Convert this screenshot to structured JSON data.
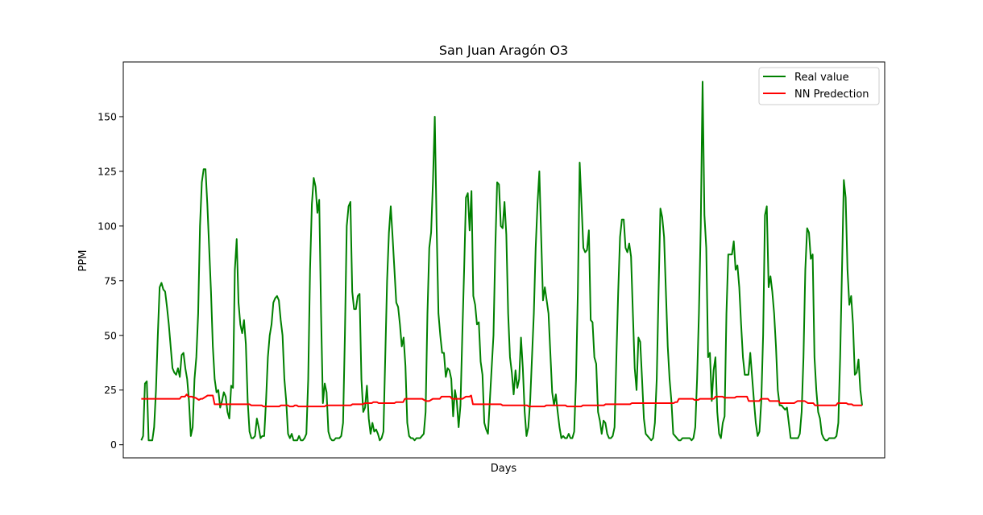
{
  "chart_data": {
    "type": "line",
    "title": "San Juan Aragón O3",
    "xlabel": "Days",
    "ylabel": "PPM",
    "ylim": [
      -6,
      175
    ],
    "xlim": [
      -8,
      330
    ],
    "yticks": [
      0,
      25,
      50,
      75,
      100,
      125,
      150
    ],
    "grid": false,
    "legend_position": "top-right",
    "series": [
      {
        "name": "Real value",
        "color": "#008000",
        "values": [
          2,
          4,
          28,
          29,
          2,
          2,
          2,
          8,
          25,
          50,
          72,
          74,
          71,
          70,
          63,
          55,
          45,
          35,
          33,
          32,
          35,
          31,
          41,
          42,
          35,
          30,
          20,
          4,
          8,
          30,
          40,
          60,
          100,
          120,
          126,
          126,
          110,
          90,
          70,
          45,
          30,
          24,
          25,
          17,
          20,
          24,
          22,
          15,
          12,
          27,
          26,
          80,
          94,
          65,
          55,
          51,
          57,
          46,
          20,
          6,
          3,
          3,
          4,
          12,
          8,
          3,
          4,
          4,
          20,
          40,
          50,
          55,
          65,
          67,
          68,
          66,
          57,
          50,
          30,
          20,
          5,
          3,
          5,
          2,
          2,
          2,
          4,
          2,
          2,
          3,
          5,
          30,
          80,
          110,
          122,
          118,
          106,
          112,
          60,
          19,
          28,
          24,
          6,
          3,
          2,
          2,
          3,
          3,
          3,
          4,
          10,
          50,
          100,
          109,
          111,
          70,
          62,
          62,
          68,
          69,
          30,
          15,
          17,
          27,
          12,
          5,
          10,
          6,
          7,
          5,
          2,
          3,
          6,
          40,
          75,
          97,
          109,
          95,
          80,
          65,
          63,
          55,
          45,
          49,
          36,
          10,
          4,
          3,
          3,
          2,
          3,
          3,
          3,
          4,
          5,
          15,
          60,
          90,
          97,
          120,
          150,
          100,
          60,
          50,
          42,
          42,
          31,
          35,
          34,
          30,
          13,
          25,
          20,
          8,
          18,
          50,
          80,
          113,
          115,
          98,
          116,
          68,
          64,
          55,
          56,
          38,
          32,
          10,
          7,
          5,
          20,
          35,
          50,
          90,
          120,
          119,
          100,
          99,
          111,
          96,
          60,
          40,
          33,
          23,
          34,
          26,
          30,
          49,
          35,
          15,
          4,
          8,
          20,
          40,
          60,
          90,
          110,
          125,
          95,
          66,
          72,
          66,
          60,
          42,
          24,
          18,
          23,
          15,
          8,
          3,
          4,
          3,
          3,
          5,
          3,
          3,
          6,
          30,
          70,
          129,
          110,
          90,
          88,
          89,
          98,
          57,
          56,
          40,
          37,
          15,
          11,
          5,
          11,
          10,
          5,
          3,
          3,
          4,
          8,
          40,
          70,
          95,
          103,
          103,
          90,
          88,
          92,
          86,
          60,
          35,
          25,
          49,
          47,
          30,
          12,
          5,
          4,
          3,
          2,
          3,
          10,
          30,
          70,
          108,
          104,
          95,
          70,
          45,
          30,
          20,
          5,
          4,
          3,
          2,
          2,
          3,
          3,
          3,
          3,
          3,
          2,
          3,
          8,
          30,
          60,
          100,
          166,
          105,
          90,
          40,
          42,
          20,
          34,
          40,
          15,
          5,
          3,
          10,
          13,
          60,
          87,
          87,
          87,
          93,
          80,
          82,
          72,
          55,
          40,
          32,
          32,
          32,
          42,
          31,
          20,
          10,
          4,
          6,
          20,
          50,
          105,
          109,
          72,
          77,
          70,
          60,
          45,
          25,
          18,
          18,
          17,
          16,
          17,
          10,
          3,
          3,
          3,
          3,
          3,
          5,
          15,
          40,
          80,
          99,
          97,
          85,
          87,
          40,
          25,
          15,
          12,
          5,
          3,
          2,
          2,
          3,
          3,
          3,
          3,
          4,
          10,
          40,
          80,
          121,
          113,
          80,
          64,
          68,
          55,
          32,
          33,
          39,
          25,
          18
        ]
      },
      {
        "name": "NN Predection",
        "color": "#ff0000",
        "values": [
          21,
          21,
          21,
          21,
          21,
          21,
          21,
          21,
          21,
          21,
          21,
          21,
          21,
          21,
          21,
          21,
          21,
          21,
          21,
          21,
          21,
          21,
          21,
          22,
          22,
          22,
          23,
          22,
          22,
          22,
          21.5,
          21.5,
          21,
          20.5,
          21,
          21,
          21.5,
          22,
          22.5,
          22.5,
          22.5,
          22.5,
          18.5,
          18.5,
          18.5,
          18.5,
          18.5,
          18.5,
          18.5,
          18.5,
          18.5,
          18.5,
          18.5,
          18.5,
          18.5,
          18.5,
          18.5,
          18.5,
          18.5,
          18.5,
          18.5,
          18.5,
          18.5,
          18,
          18,
          18,
          18,
          18,
          18,
          18,
          17.5,
          17.5,
          17.5,
          17.5,
          17.5,
          17.5,
          17.5,
          17.5,
          17.5,
          17.5,
          18,
          18,
          18,
          18,
          18,
          17.5,
          17.5,
          17.5,
          18,
          18,
          17.5,
          17.5,
          17.5,
          17.5,
          17.5,
          17.5,
          17.5,
          17.5,
          17.5,
          17.5,
          17.5,
          17.5,
          17.5,
          17.5,
          17.5,
          17.5,
          18,
          18,
          18,
          18,
          18,
          18,
          18,
          18,
          18,
          18,
          18,
          18,
          18,
          18,
          18,
          18.5,
          18.5,
          18.5,
          18.5,
          18.5,
          18.5,
          18.5,
          19,
          19,
          19,
          19,
          19,
          19.5,
          19.5,
          19.5,
          19,
          19,
          19,
          19,
          19,
          19,
          19,
          19,
          19,
          19,
          19.5,
          19.5,
          19.5,
          19.5,
          19.5,
          21,
          21,
          21,
          21,
          21,
          21,
          21,
          21,
          21,
          21,
          21,
          20.5,
          20,
          20,
          20,
          20.5,
          21,
          21,
          21,
          21,
          21,
          22,
          22,
          22,
          22,
          22,
          22,
          21,
          21,
          21,
          21,
          21,
          21,
          21,
          21.5,
          22,
          22,
          22,
          22.5,
          18.5,
          18.5,
          18.5,
          18.5,
          18.5,
          18.5,
          18.5,
          18.5,
          18.5,
          18.5,
          18.5,
          18.5,
          18.5,
          18.5,
          18.5,
          18.5,
          18.5,
          18,
          18,
          18,
          18,
          18,
          18,
          18,
          18,
          18,
          18,
          18,
          18,
          18,
          18,
          18,
          17.5,
          17.5,
          17.5,
          17.5,
          17.5,
          17.5,
          17.5,
          17.5,
          17.5,
          17.5,
          18,
          18,
          18,
          18,
          18,
          18,
          18,
          18,
          18,
          18,
          18,
          18,
          17.5,
          17.5,
          17.5,
          17.5,
          17.5,
          17.5,
          17.5,
          17.5,
          17.5,
          18,
          18,
          18,
          18,
          18,
          18,
          18,
          18,
          18,
          18,
          18,
          18,
          18,
          18.5,
          18.5,
          18.5,
          18.5,
          18.5,
          18.5,
          18.5,
          18.5,
          18.5,
          18.5,
          18.5,
          18.5,
          18.5,
          18.5,
          18.5,
          19,
          19,
          19,
          19,
          19,
          19,
          19,
          19,
          19,
          19,
          19,
          19,
          19,
          19,
          19,
          19,
          19,
          19,
          19,
          19,
          19,
          19,
          19,
          19,
          19,
          19.5,
          19.5,
          21,
          21,
          21,
          21,
          21,
          21,
          21,
          21,
          21,
          20.5,
          20.5,
          20.5,
          21,
          21,
          21,
          21,
          21,
          21,
          21,
          21,
          21,
          22,
          22,
          22,
          22,
          22,
          21.5,
          21.5,
          21.5,
          21.5,
          21.5,
          21.5,
          21.5,
          22,
          22,
          22,
          22,
          22,
          22,
          22,
          20,
          20,
          20,
          20,
          20,
          20,
          20,
          21,
          21,
          21,
          21,
          21,
          20,
          20,
          20,
          20,
          20,
          20,
          19,
          19,
          19,
          19,
          19,
          19,
          19,
          19,
          19,
          19.5,
          20,
          20,
          20,
          20,
          20,
          19.5,
          19,
          19,
          19,
          19,
          18,
          18,
          18,
          18,
          18,
          18,
          18,
          18,
          18,
          18,
          18,
          18,
          18,
          19,
          19,
          19,
          19,
          19,
          19,
          18.5,
          18.5,
          18.5,
          18,
          18,
          18,
          18,
          18,
          18
        ]
      }
    ]
  }
}
